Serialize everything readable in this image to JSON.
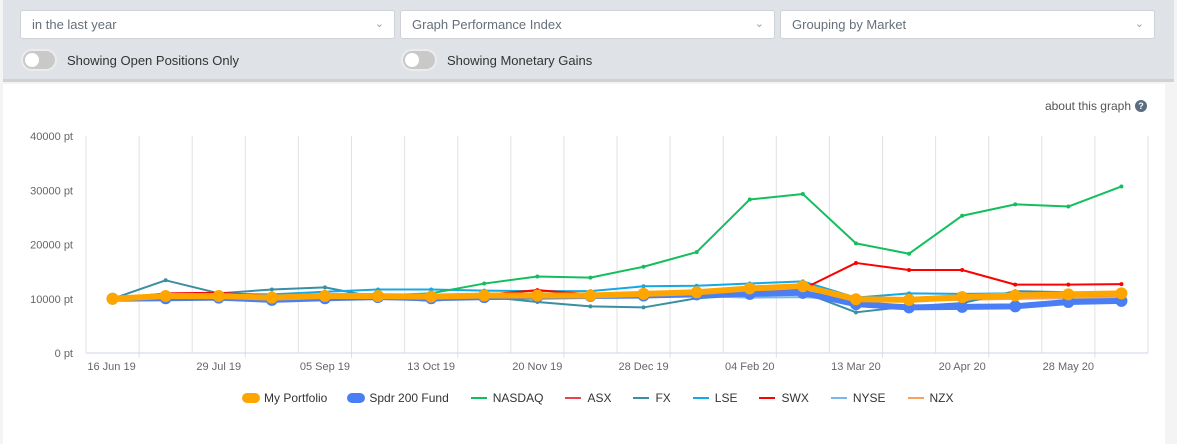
{
  "filters": {
    "period": "in the last year",
    "graph_type": "Graph Performance Index",
    "grouping": "Grouping by Market",
    "open_positions_label": "Showing Open Positions Only",
    "open_positions_on": false,
    "monetary_label": "Showing Monetary Gains",
    "monetary_on": false
  },
  "about_link": "about this graph",
  "chart_data": {
    "type": "line",
    "y_ticks": [
      "0 pt",
      "10000 pt",
      "20000 pt",
      "30000 pt",
      "40000 pt"
    ],
    "ylim": [
      0,
      40000
    ],
    "x_tick_labels": [
      "16 Jun 19",
      "29 Jul 19",
      "05 Sep 19",
      "13 Oct 19",
      "20 Nov 19",
      "28 Dec 19",
      "04 Feb 20",
      "13 Mar 20",
      "20 Apr 20",
      "28 May 20"
    ],
    "grid": "vertical",
    "legend": "bottom",
    "series": [
      {
        "name": "NYSE",
        "color": "#7cb5ec",
        "values": [
          10000,
          10100,
          10300,
          10000,
          10200,
          10300,
          10200,
          10300,
          10400,
          10300,
          10400,
          10500,
          10200,
          10300,
          9800,
          9700,
          9900,
          10000,
          10100,
          10200
        ]
      },
      {
        "name": "NZX",
        "color": "#f7a35c",
        "values": [
          10000,
          10300,
          10400,
          10100,
          10300,
          10400,
          10300,
          10400,
          10400,
          10300,
          10500,
          10600,
          10700,
          10800,
          9700,
          9600,
          9800,
          10000,
          10200,
          10300
        ]
      },
      {
        "name": "ASX",
        "color": "#e8434f",
        "values": [
          10000,
          10600,
          10800,
          10300,
          10600,
          10500,
          10400,
          10600,
          10800,
          10500,
          10700,
          10900,
          11000,
          11200,
          9900,
          9700,
          10000,
          10300,
          10500,
          10600
        ]
      },
      {
        "name": "FX",
        "color": "#3a8fa3",
        "values": [
          10000,
          13400,
          11000,
          11700,
          12100,
          10200,
          9600,
          10400,
          9400,
          8600,
          8400,
          10100,
          10700,
          11200,
          7500,
          8600,
          9200,
          11400,
          11200,
          11000
        ]
      },
      {
        "name": "LSE",
        "color": "#14a8e6",
        "values": [
          10000,
          10700,
          10900,
          10800,
          11300,
          11700,
          11700,
          11500,
          11400,
          11400,
          12300,
          12400,
          12800,
          13200,
          10200,
          11000,
          10900,
          11000,
          11000,
          10800
        ]
      },
      {
        "name": "SWX",
        "color": "#ff0000",
        "values": [
          10000,
          11000,
          11100,
          10500,
          10800,
          10700,
          10500,
          10700,
          11600,
          10800,
          10900,
          11200,
          11500,
          11800,
          16600,
          15300,
          15300,
          12600,
          12600,
          12700
        ]
      },
      {
        "name": "NASDAQ",
        "color": "#13bf5c",
        "values": [
          10000,
          10500,
          10700,
          10300,
          10600,
          10600,
          11000,
          12800,
          14100,
          13900,
          15900,
          18600,
          28300,
          29300,
          20200,
          18300,
          25300,
          27400,
          27000,
          30700
        ]
      },
      {
        "name": "Spdr 200 Fund",
        "color": "#4a7ef5",
        "thick": true,
        "values": [
          10000,
          10100,
          10200,
          9800,
          10100,
          10300,
          10100,
          10300,
          10400,
          10500,
          10600,
          10800,
          10900,
          11100,
          9000,
          8400,
          8500,
          8600,
          9400,
          9600
        ]
      },
      {
        "name": "My Portfolio",
        "color": "#ffa500",
        "thick": true,
        "values": [
          10000,
          10500,
          10500,
          10200,
          10500,
          10500,
          10400,
          10600,
          10600,
          10600,
          10900,
          11200,
          11900,
          12300,
          9900,
          9800,
          10300,
          10600,
          10800,
          11000
        ]
      }
    ],
    "legend_order": [
      "My Portfolio",
      "Spdr 200 Fund",
      "NASDAQ",
      "ASX",
      "FX",
      "LSE",
      "SWX",
      "NYSE",
      "NZX"
    ]
  }
}
